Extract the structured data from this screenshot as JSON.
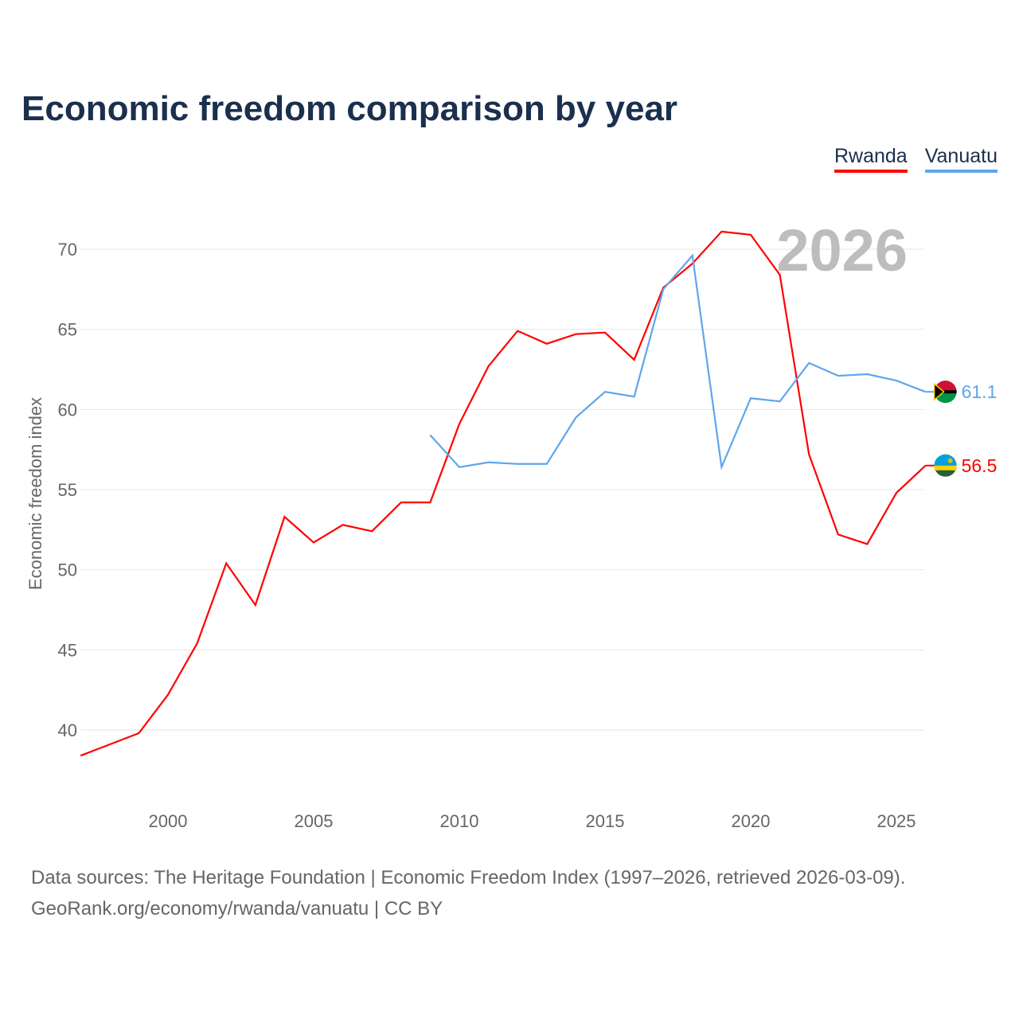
{
  "title": "Economic freedom comparison by year",
  "legend": [
    {
      "label": "Rwanda",
      "color": "#ff0000"
    },
    {
      "label": "Vanuatu",
      "color": "#5ea6ec"
    }
  ],
  "footer": {
    "line1": "Data sources: The Heritage Foundation | Economic Freedom Index (1997–2026, retrieved 2026-03-09).",
    "line2": "GeoRank.org/economy/rwanda/vanuatu | CC BY"
  },
  "chart_data": {
    "type": "line",
    "title": "Economic freedom comparison by year",
    "ylabel": "Economic freedom index",
    "year_watermark": "2026",
    "xlim": [
      1997,
      2026
    ],
    "ylim": [
      37,
      72
    ],
    "xticks": [
      2000,
      2005,
      2010,
      2015,
      2020,
      2025
    ],
    "yticks": [
      40,
      45,
      50,
      55,
      60,
      65,
      70
    ],
    "grid": true,
    "series": [
      {
        "name": "Rwanda",
        "color": "#ff0000",
        "end_label": "56.5",
        "x": [
          1997,
          1998,
          1999,
          2000,
          2001,
          2002,
          2003,
          2004,
          2005,
          2006,
          2007,
          2008,
          2009,
          2010,
          2011,
          2012,
          2013,
          2014,
          2015,
          2016,
          2017,
          2018,
          2019,
          2020,
          2021,
          2022,
          2023,
          2024,
          2025,
          2026
        ],
        "y": [
          38.4,
          39.1,
          39.8,
          42.2,
          45.4,
          50.4,
          47.8,
          53.3,
          51.7,
          52.8,
          52.4,
          54.2,
          54.2,
          59.1,
          62.7,
          64.9,
          64.1,
          64.7,
          64.8,
          63.1,
          67.6,
          69.1,
          71.1,
          70.9,
          68.4,
          57.2,
          52.2,
          51.6,
          54.8,
          56.5
        ]
      },
      {
        "name": "Vanuatu",
        "color": "#5ea6ec",
        "end_label": "61.1",
        "x": [
          2009,
          2010,
          2011,
          2012,
          2013,
          2014,
          2015,
          2016,
          2017,
          2018,
          2019,
          2020,
          2021,
          2022,
          2023,
          2024,
          2025,
          2026
        ],
        "y": [
          58.4,
          56.4,
          56.7,
          56.6,
          56.6,
          59.5,
          61.1,
          60.8,
          67.5,
          69.6,
          56.4,
          60.7,
          60.5,
          62.9,
          62.1,
          62.2,
          61.8,
          61.1
        ]
      }
    ]
  }
}
